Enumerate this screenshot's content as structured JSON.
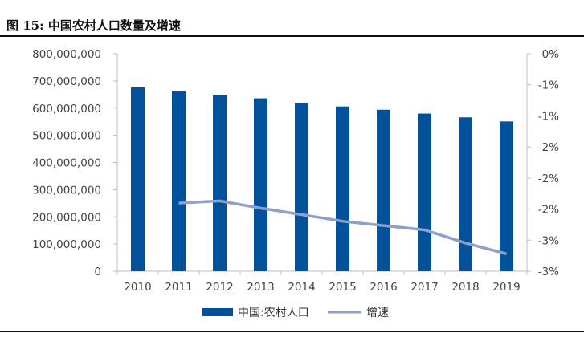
{
  "figure": {
    "title": "图 15:  中国农村人口数量及增速"
  },
  "colors": {
    "bar": "#01529b",
    "line": "#8e9fcc",
    "axis": "#bfbfbf"
  },
  "chart_data": {
    "type": "bar",
    "categories": [
      "2010",
      "2011",
      "2012",
      "2013",
      "2014",
      "2015",
      "2016",
      "2017",
      "2018",
      "2019"
    ],
    "series": [
      {
        "name": "中国:农村人口",
        "type": "bar",
        "axis": "left",
        "values": [
          676000000,
          662000000,
          649000000,
          636000000,
          620000000,
          606000000,
          594000000,
          580000000,
          566000000,
          551000000
        ]
      },
      {
        "name": "增速",
        "type": "line",
        "axis": "right",
        "values": [
          null,
          -2.06,
          -2.03,
          -2.13,
          -2.22,
          -2.31,
          -2.37,
          -2.43,
          -2.61,
          -2.76
        ]
      }
    ],
    "ylim_left": [
      0,
      800000000
    ],
    "yticks_left": [
      "800,000,000",
      "700,000,000",
      "600,000,000",
      "500,000,000",
      "400,000,000",
      "300,000,000",
      "200,000,000",
      "100,000,000",
      "0"
    ],
    "ylim_right": [
      -3,
      0
    ],
    "yticks_right": [
      "0%",
      "-1%",
      "-1%",
      "-2%",
      "-2%",
      "-2%",
      "-3%",
      "-3%"
    ],
    "legend": {
      "position": "bottom",
      "entries": [
        "中国:农村人口",
        "增速"
      ]
    },
    "grid": false
  }
}
